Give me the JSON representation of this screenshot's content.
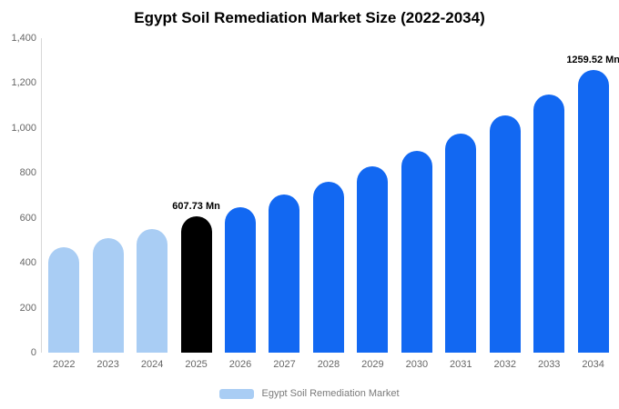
{
  "title": "Egypt Soil Remediation Market Size (2022-2034)",
  "legend": {
    "label": "Egypt Soil Remediation Market",
    "swatch_color": "#a9cdf4"
  },
  "colors": {
    "historical_bar": "#a9cdf4",
    "base_year_bar": "#000000",
    "forecast_bar": "#1268f2",
    "axis_text": "#666666",
    "axis_line": "#d8d8d8"
  },
  "axis": {
    "y_ticks_bottom_to_top": [
      "0",
      "200",
      "400",
      "600",
      "800",
      "1,000",
      "1,200",
      "1,400"
    ]
  },
  "chart_data": {
    "type": "bar",
    "title": "Egypt Soil Remediation Market Size (2022-2034)",
    "xlabel": "",
    "ylabel": "",
    "ylim": [
      0,
      1400
    ],
    "unit": "Mn",
    "grid": false,
    "legend_position": "bottom",
    "legend": [
      "Egypt Soil Remediation Market"
    ],
    "categories": [
      "2022",
      "2023",
      "2024",
      "2025",
      "2026",
      "2027",
      "2028",
      "2029",
      "2030",
      "2031",
      "2032",
      "2033",
      "2034"
    ],
    "values": [
      470,
      509,
      551,
      607.73,
      648,
      705,
      762,
      828,
      898,
      974,
      1056,
      1148,
      1259.52
    ],
    "bar_colors": [
      "#a9cdf4",
      "#a9cdf4",
      "#a9cdf4",
      "#000000",
      "#1268f2",
      "#1268f2",
      "#1268f2",
      "#1268f2",
      "#1268f2",
      "#1268f2",
      "#1268f2",
      "#1268f2",
      "#1268f2"
    ],
    "value_labels": [
      "",
      "",
      "",
      "607.73 Mn",
      "",
      "",
      "",
      "",
      "",
      "",
      "",
      "",
      "1259.52 Mn"
    ]
  }
}
